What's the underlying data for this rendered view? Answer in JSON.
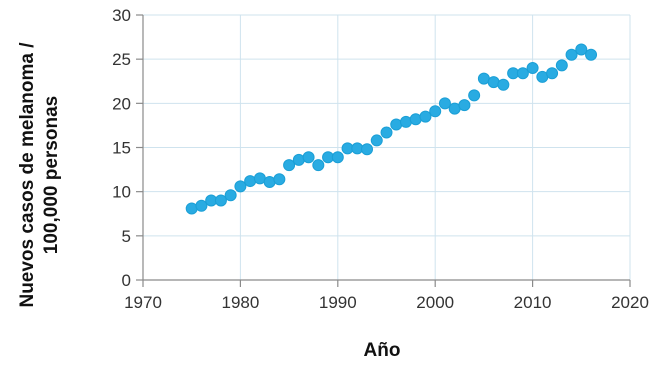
{
  "chart_data": {
    "type": "scatter",
    "xlabel": "Año",
    "ylabel_lines": [
      "Nuevos casos de melanoma /",
      "100,000 personas"
    ],
    "xlim": [
      1970,
      2020
    ],
    "ylim": [
      0,
      30
    ],
    "xticks": [
      1970,
      1980,
      1990,
      2000,
      2010,
      2020
    ],
    "yticks": [
      0,
      5,
      10,
      15,
      20,
      25,
      30
    ],
    "grid": true,
    "marker_color": "#29abe2",
    "grid_color": "#cfe3ee",
    "x": [
      1975,
      1976,
      1977,
      1978,
      1979,
      1980,
      1981,
      1982,
      1983,
      1984,
      1985,
      1986,
      1987,
      1988,
      1989,
      1990,
      1991,
      1992,
      1993,
      1994,
      1995,
      1996,
      1997,
      1998,
      1999,
      2000,
      2001,
      2002,
      2003,
      2004,
      2005,
      2006,
      2007,
      2008,
      2009,
      2010,
      2011,
      2012,
      2013,
      2014,
      2015,
      2016
    ],
    "y": [
      8.1,
      8.4,
      9.0,
      9.0,
      9.6,
      10.6,
      11.2,
      11.5,
      11.1,
      11.4,
      13.0,
      13.6,
      13.9,
      13.0,
      13.9,
      13.9,
      14.9,
      14.9,
      14.8,
      15.8,
      16.7,
      17.6,
      17.9,
      18.2,
      18.5,
      19.1,
      20.0,
      19.4,
      19.8,
      20.9,
      22.8,
      22.4,
      22.1,
      23.4,
      23.4,
      24.0,
      23.0,
      23.4,
      24.3,
      25.5,
      26.1,
      25.5
    ]
  }
}
